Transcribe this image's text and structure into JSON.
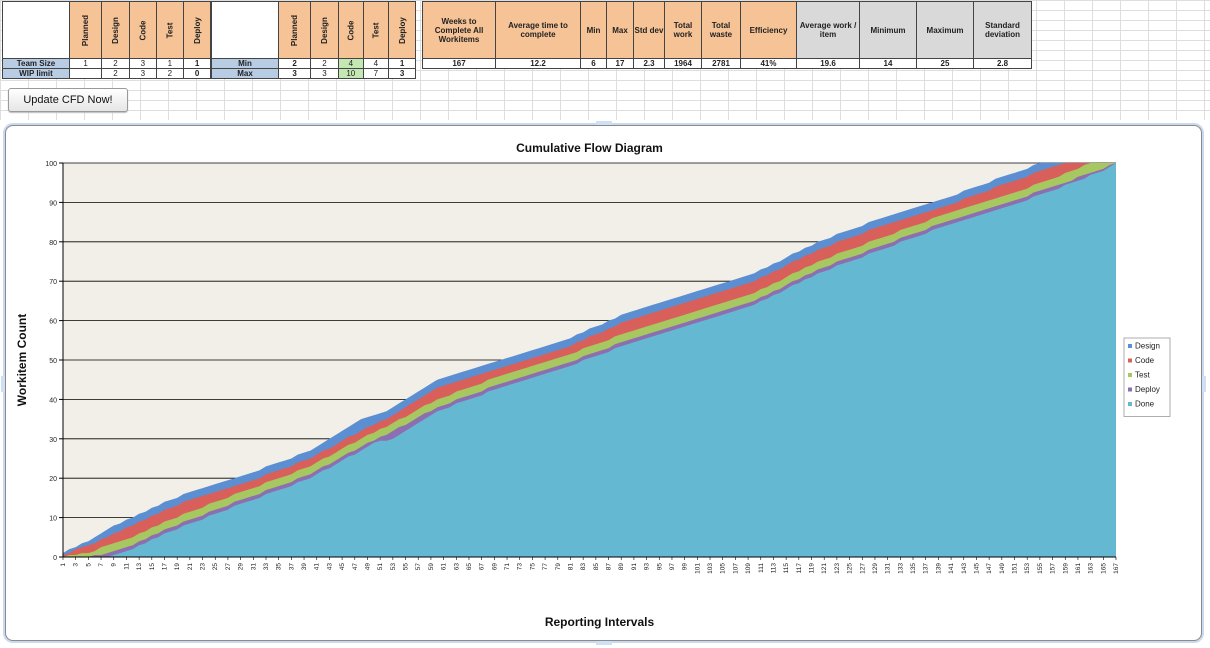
{
  "sheet": {
    "stage_headers": [
      "Planned",
      "Design",
      "Code",
      "Test",
      "Deploy"
    ],
    "row_team_size": {
      "label": "Team Size",
      "values": [
        "1",
        "2",
        "3",
        "1",
        "1"
      ]
    },
    "row_wip": {
      "label": "WIP limit",
      "values": [
        "",
        "2",
        "3",
        "2",
        "0"
      ]
    },
    "row_min": {
      "label": "Min",
      "values": [
        "2",
        "2",
        "4",
        "4",
        "1"
      ]
    },
    "row_max": {
      "label": "Max",
      "values": [
        "3",
        "3",
        "10",
        "7",
        "3"
      ]
    },
    "stats": [
      {
        "label": "Weeks to Complete All Workitems",
        "value": "167"
      },
      {
        "label": "Average time to complete",
        "value": "12.2"
      },
      {
        "label": "Min",
        "value": "6"
      },
      {
        "label": "Max",
        "value": "17"
      },
      {
        "label": "Std dev",
        "value": "2.3"
      },
      {
        "label": "Total work",
        "value": "1964"
      },
      {
        "label": "Total waste",
        "value": "2781"
      },
      {
        "label": "Efficiency",
        "value": "41%"
      }
    ],
    "stats2": [
      {
        "label": "Average work / item",
        "value": "19.6"
      },
      {
        "label": "Minimum",
        "value": "14"
      },
      {
        "label": "Maximum",
        "value": "25"
      },
      {
        "label": "Standard deviation",
        "value": "2.8"
      }
    ],
    "header_color": "#f6c396",
    "gray_header_color": "#d9d9d9",
    "highlight_color": "#c4e8b4",
    "rowlabel_color": "#b8cce4"
  },
  "button": {
    "label": "Update CFD Now!"
  },
  "chart_data": {
    "type": "area",
    "stacked": true,
    "title": "Cumulative Flow Diagram",
    "xlabel": "Reporting Intervals",
    "ylabel": "Workitem Count",
    "ylim": [
      0,
      100
    ],
    "yticks": [
      0,
      10,
      20,
      30,
      40,
      50,
      60,
      70,
      80,
      90,
      100
    ],
    "x_range": [
      1,
      167
    ],
    "x_tick_step": 2,
    "grid": "horizontal",
    "legend_placement": "right",
    "series": [
      {
        "name": "Design",
        "color": "#5b8fd1",
        "keyframes": [
          [
            1,
            1
          ],
          [
            5,
            4
          ],
          [
            8,
            7
          ],
          [
            12,
            10
          ],
          [
            17,
            14
          ],
          [
            22,
            17
          ],
          [
            30,
            21
          ],
          [
            40,
            27
          ],
          [
            48,
            35
          ],
          [
            52,
            37
          ],
          [
            60,
            45
          ],
          [
            70,
            50
          ],
          [
            80,
            55
          ],
          [
            90,
            62
          ],
          [
            100,
            67
          ],
          [
            110,
            72
          ],
          [
            120,
            80
          ],
          [
            130,
            86
          ],
          [
            140,
            91
          ],
          [
            150,
            97
          ],
          [
            157,
            101
          ],
          [
            167,
            101
          ]
        ]
      },
      {
        "name": "Code",
        "color": "#d9605a",
        "keyframes": [
          [
            1,
            0.5
          ],
          [
            5,
            3
          ],
          [
            8,
            5
          ],
          [
            12,
            8
          ],
          [
            17,
            12
          ],
          [
            22,
            15
          ],
          [
            30,
            19
          ],
          [
            40,
            25
          ],
          [
            48,
            32
          ],
          [
            52,
            35
          ],
          [
            60,
            43
          ],
          [
            70,
            48
          ],
          [
            80,
            53
          ],
          [
            90,
            60
          ],
          [
            100,
            65
          ],
          [
            110,
            70
          ],
          [
            120,
            78
          ],
          [
            130,
            84
          ],
          [
            140,
            89
          ],
          [
            150,
            95
          ],
          [
            157,
            99
          ],
          [
            160,
            101
          ],
          [
            167,
            101
          ]
        ]
      },
      {
        "name": "Test",
        "color": "#a7c760",
        "keyframes": [
          [
            1,
            0
          ],
          [
            5,
            1
          ],
          [
            8,
            3
          ],
          [
            12,
            5
          ],
          [
            17,
            9
          ],
          [
            22,
            12
          ],
          [
            30,
            17
          ],
          [
            40,
            23
          ],
          [
            48,
            30
          ],
          [
            52,
            33
          ],
          [
            60,
            40
          ],
          [
            70,
            46
          ],
          [
            80,
            51
          ],
          [
            90,
            57
          ],
          [
            100,
            62
          ],
          [
            110,
            67
          ],
          [
            120,
            75
          ],
          [
            130,
            81
          ],
          [
            140,
            87
          ],
          [
            150,
            92
          ],
          [
            157,
            96
          ],
          [
            163,
            100
          ],
          [
            167,
            100
          ]
        ]
      },
      {
        "name": "Deploy",
        "color": "#8c6fb1",
        "keyframes": [
          [
            1,
            0
          ],
          [
            5,
            0
          ],
          [
            8,
            1
          ],
          [
            12,
            3
          ],
          [
            17,
            7
          ],
          [
            22,
            10
          ],
          [
            30,
            15
          ],
          [
            40,
            21
          ],
          [
            48,
            28
          ],
          [
            52,
            31
          ],
          [
            60,
            38
          ],
          [
            70,
            44
          ],
          [
            80,
            49
          ],
          [
            90,
            55
          ],
          [
            100,
            60
          ],
          [
            110,
            65
          ],
          [
            120,
            73
          ],
          [
            130,
            79
          ],
          [
            140,
            85
          ],
          [
            150,
            90
          ],
          [
            157,
            94
          ],
          [
            164,
            98
          ],
          [
            167,
            100
          ]
        ]
      },
      {
        "name": "Done",
        "color": "#64b8d2",
        "keyframes": [
          [
            1,
            0
          ],
          [
            5,
            0
          ],
          [
            8,
            0
          ],
          [
            12,
            2
          ],
          [
            17,
            6
          ],
          [
            22,
            9
          ],
          [
            30,
            14
          ],
          [
            40,
            20
          ],
          [
            48,
            27
          ],
          [
            50,
            29
          ],
          [
            53,
            30
          ],
          [
            60,
            37
          ],
          [
            70,
            43
          ],
          [
            80,
            48
          ],
          [
            90,
            54
          ],
          [
            100,
            59
          ],
          [
            110,
            64
          ],
          [
            120,
            72
          ],
          [
            130,
            78
          ],
          [
            140,
            84
          ],
          [
            150,
            89
          ],
          [
            157,
            93
          ],
          [
            165,
            98
          ],
          [
            167,
            100
          ]
        ]
      }
    ]
  }
}
